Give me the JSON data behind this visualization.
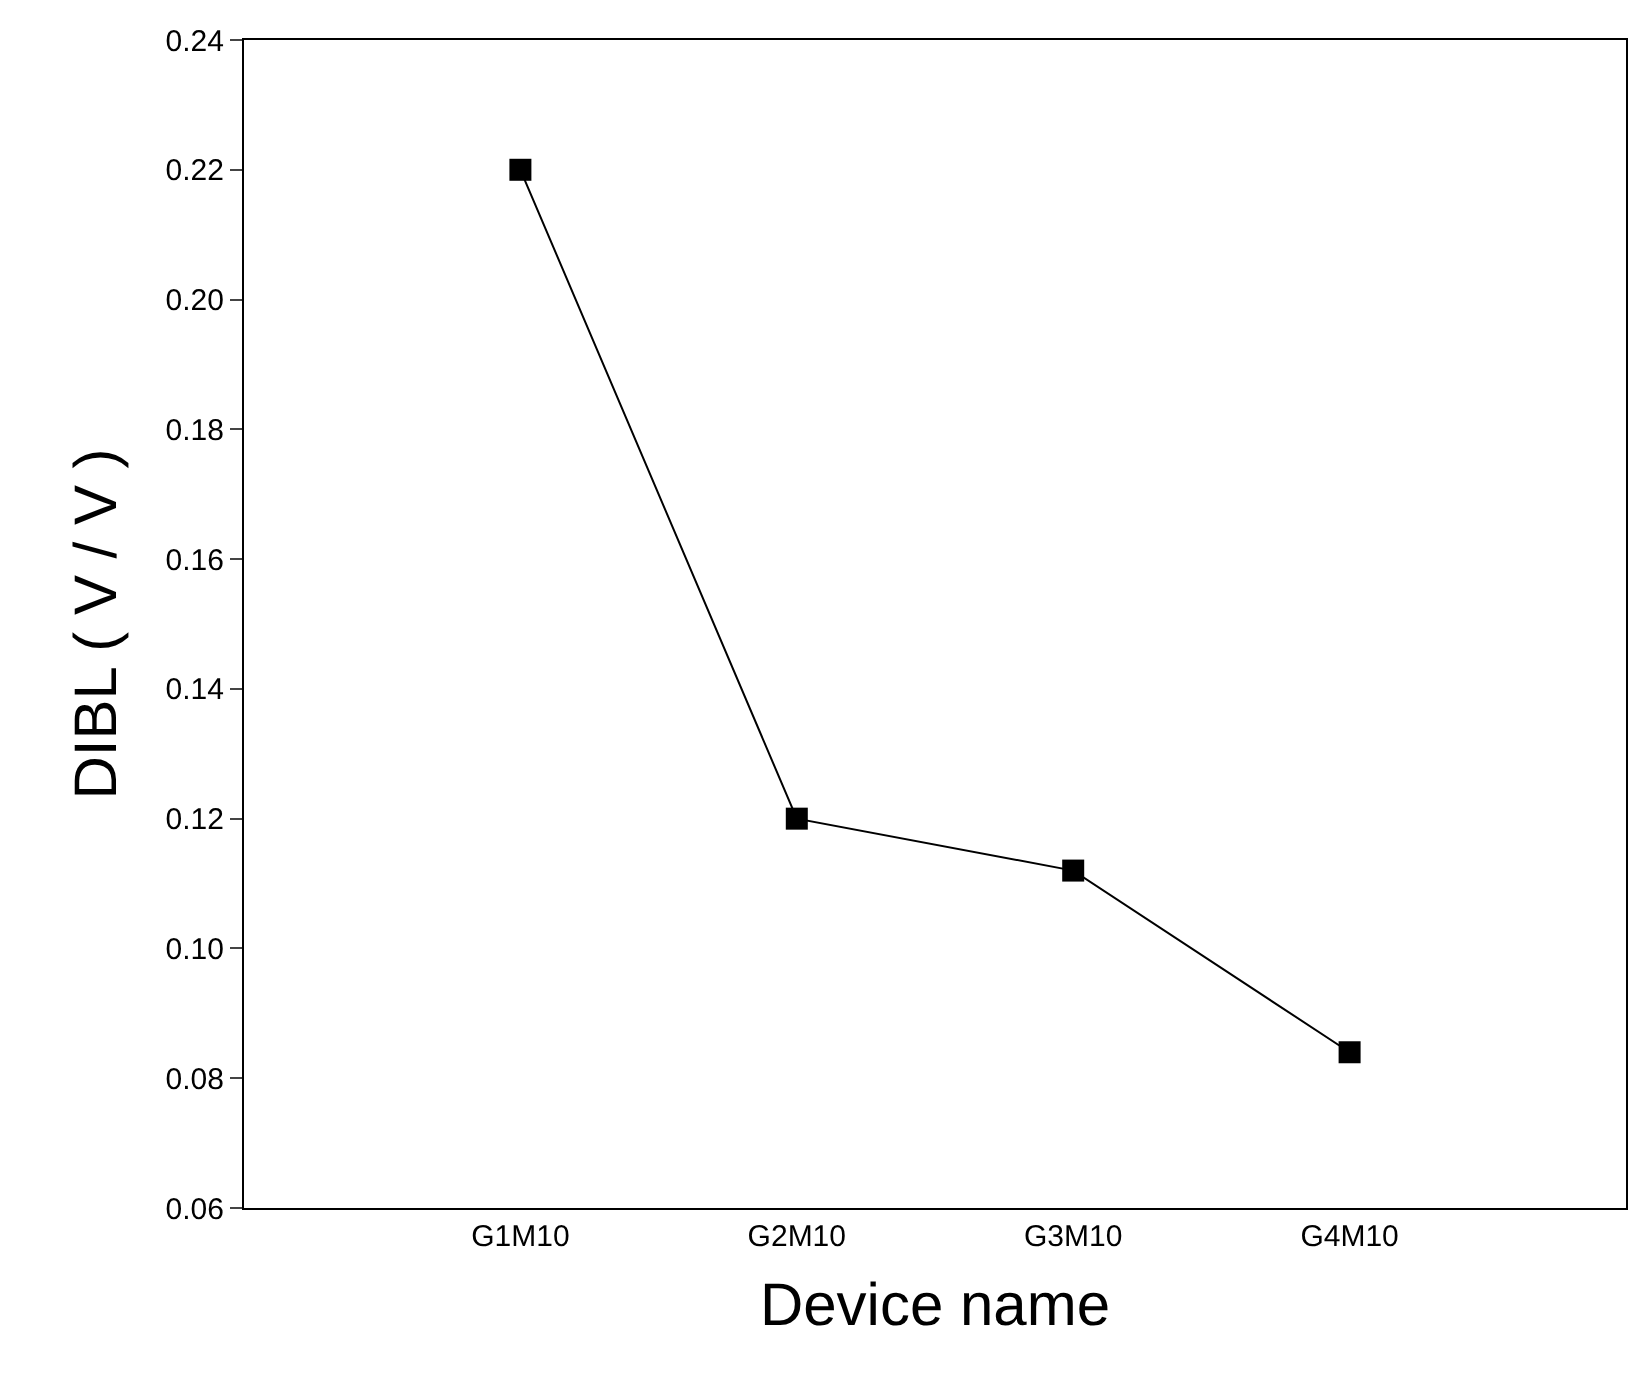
{
  "chart_data": {
    "type": "line",
    "xlabel": "Device name",
    "ylabel": "DIBL ( V / V )",
    "categories": [
      "G1M10",
      "G2M10",
      "G3M10",
      "G4M10"
    ],
    "series": [
      {
        "color": "#000000",
        "values": [
          0.22,
          0.12,
          0.112,
          0.084
        ]
      }
    ],
    "ylim": [
      0.06,
      0.24
    ],
    "yticks": [
      {
        "value": 0.06,
        "label": "0.06"
      },
      {
        "value": 0.08,
        "label": "0.08"
      },
      {
        "value": 0.1,
        "label": "0.10"
      },
      {
        "value": 0.12,
        "label": "0.12"
      },
      {
        "value": 0.14,
        "label": "0.14"
      },
      {
        "value": 0.16,
        "label": "0.16"
      },
      {
        "value": 0.18,
        "label": "0.18"
      },
      {
        "value": 0.2,
        "label": "0.20"
      },
      {
        "value": 0.22,
        "label": "0.22"
      },
      {
        "value": 0.24,
        "label": "0.24"
      }
    ],
    "marker": "square",
    "line_style": "solid"
  }
}
